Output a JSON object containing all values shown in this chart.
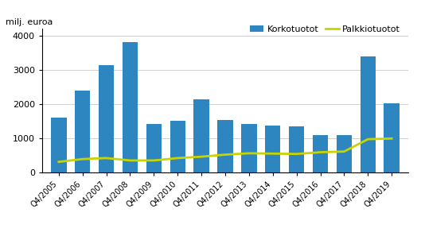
{
  "categories": [
    "Q4/2005",
    "Q4/2006",
    "Q4/2007",
    "Q4/2008",
    "Q4/2009",
    "Q4/2010",
    "Q4/2011",
    "Q4/2012",
    "Q4/2013",
    "Q4/2014",
    "Q4/2015",
    "Q4/2016",
    "Q4/2017",
    "Q4/2018",
    "Q4/2019"
  ],
  "korkotuotot": [
    1600,
    2400,
    3150,
    3800,
    1430,
    1520,
    2150,
    1530,
    1430,
    1380,
    1350,
    1100,
    1090,
    3400,
    2020
  ],
  "palkkiotuotot": [
    320,
    400,
    430,
    360,
    360,
    430,
    470,
    530,
    570,
    560,
    550,
    600,
    620,
    980,
    1000
  ],
  "bar_color": "#2e86c1",
  "line_color": "#c8d400",
  "ylabel": "milj. euroa",
  "ylim": [
    0,
    4200
  ],
  "yticks": [
    0,
    1000,
    2000,
    3000,
    4000
  ],
  "legend_labels": [
    "Korkotuotot",
    "Palkkiotuotot"
  ],
  "bg_color": "#ffffff",
  "grid_color": "#d0d0d0"
}
